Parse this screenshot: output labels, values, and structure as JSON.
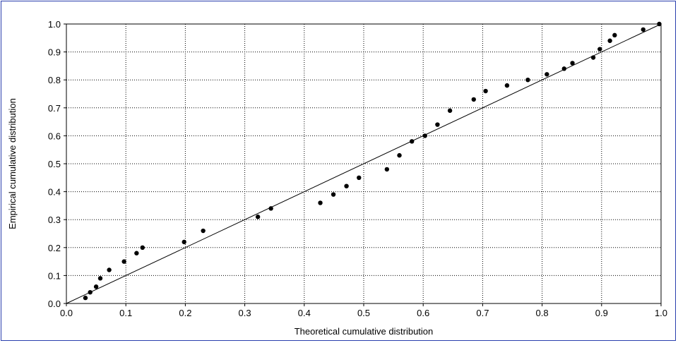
{
  "chart_data": {
    "type": "scatter",
    "title": "",
    "xlabel": "Theoretical cumulative distribution",
    "ylabel": "Empirical cumulative distribution",
    "xlim": [
      0.0,
      1.0
    ],
    "ylim": [
      0.0,
      1.0
    ],
    "grid": true,
    "x_ticks": [
      "0.0",
      "0.1",
      "0.2",
      "0.3",
      "0.4",
      "0.5",
      "0.6",
      "0.7",
      "0.8",
      "0.9",
      "1.0"
    ],
    "y_ticks": [
      "0.0",
      "0.1",
      "0.2",
      "0.3",
      "0.4",
      "0.5",
      "0.6",
      "0.7",
      "0.8",
      "0.9",
      "1.0"
    ],
    "reference_line": {
      "x": [
        0.0,
        1.0
      ],
      "y": [
        0.0,
        1.0
      ]
    },
    "points": [
      {
        "x": 0.032,
        "y": 0.02
      },
      {
        "x": 0.04,
        "y": 0.04
      },
      {
        "x": 0.05,
        "y": 0.06
      },
      {
        "x": 0.057,
        "y": 0.09
      },
      {
        "x": 0.072,
        "y": 0.12
      },
      {
        "x": 0.097,
        "y": 0.15
      },
      {
        "x": 0.118,
        "y": 0.18
      },
      {
        "x": 0.128,
        "y": 0.2
      },
      {
        "x": 0.198,
        "y": 0.22
      },
      {
        "x": 0.23,
        "y": 0.26
      },
      {
        "x": 0.322,
        "y": 0.31
      },
      {
        "x": 0.344,
        "y": 0.34
      },
      {
        "x": 0.427,
        "y": 0.36
      },
      {
        "x": 0.449,
        "y": 0.39
      },
      {
        "x": 0.471,
        "y": 0.42
      },
      {
        "x": 0.492,
        "y": 0.45
      },
      {
        "x": 0.539,
        "y": 0.48
      },
      {
        "x": 0.56,
        "y": 0.53
      },
      {
        "x": 0.581,
        "y": 0.58
      },
      {
        "x": 0.603,
        "y": 0.6
      },
      {
        "x": 0.624,
        "y": 0.64
      },
      {
        "x": 0.645,
        "y": 0.69
      },
      {
        "x": 0.685,
        "y": 0.73
      },
      {
        "x": 0.705,
        "y": 0.76
      },
      {
        "x": 0.741,
        "y": 0.78
      },
      {
        "x": 0.776,
        "y": 0.8
      },
      {
        "x": 0.808,
        "y": 0.82
      },
      {
        "x": 0.837,
        "y": 0.84
      },
      {
        "x": 0.851,
        "y": 0.86
      },
      {
        "x": 0.886,
        "y": 0.88
      },
      {
        "x": 0.897,
        "y": 0.91
      },
      {
        "x": 0.914,
        "y": 0.94
      },
      {
        "x": 0.922,
        "y": 0.96
      },
      {
        "x": 0.97,
        "y": 0.98
      },
      {
        "x": 0.997,
        "y": 1.0
      }
    ]
  }
}
